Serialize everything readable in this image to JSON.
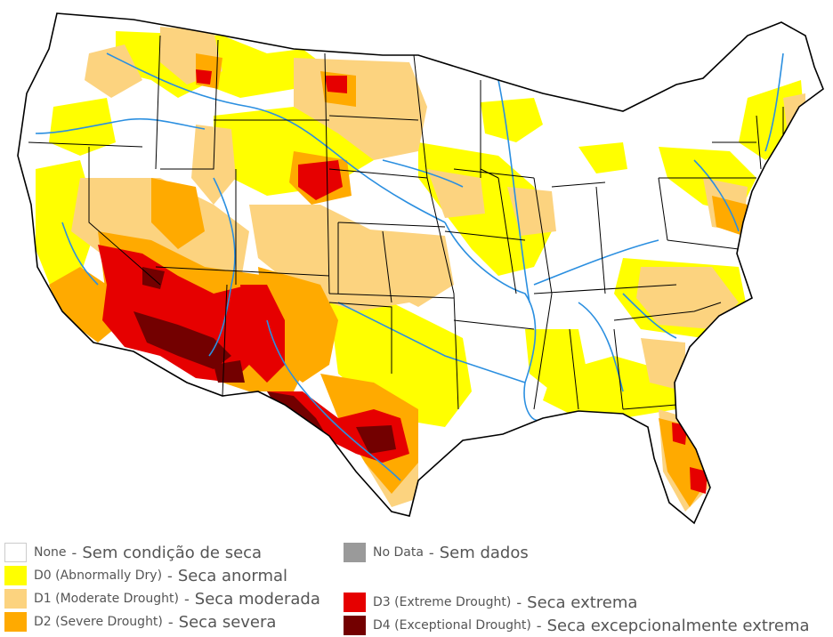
{
  "colors": {
    "none": "#ffffff",
    "d0": "#ffff00",
    "d1": "#fcd37f",
    "d2": "#ffaa00",
    "d3": "#e60000",
    "d4": "#730000",
    "nodata": "#9a9a9a",
    "river": "#2b8fe0",
    "border": "#000000"
  },
  "legend": {
    "none": {
      "code": "None",
      "sep": "-",
      "pt": "Sem condição de seca"
    },
    "d0": {
      "code": "D0 (Abnormally Dry)",
      "sep": "-",
      "pt": "Seca anormal"
    },
    "d1": {
      "code": "D1 (Moderate Drought)",
      "sep": "-",
      "pt": "Seca moderada"
    },
    "d2": {
      "code": "D2 (Severe Drought)",
      "sep": "-",
      "pt": "Seca severa"
    },
    "nodata": {
      "code": "No Data",
      "sep": "-",
      "pt": "Sem dados"
    },
    "d3": {
      "code": "D3 (Extreme Drought)",
      "sep": "-",
      "pt": "Seca extrema"
    },
    "d4": {
      "code": "D4 (Exceptional Drought)",
      "sep": "-",
      "pt": "Seca excepcionalmente extrema"
    }
  }
}
